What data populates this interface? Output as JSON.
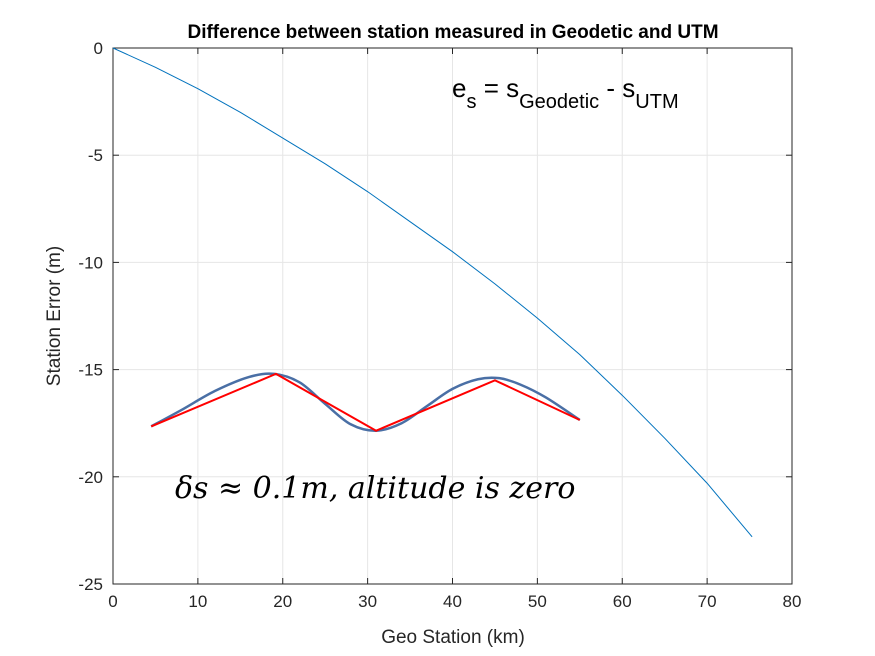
{
  "chart_data": {
    "type": "line",
    "title": "Difference between station measured in Geodetic and UTM",
    "xlabel": "Geo Station (km)",
    "ylabel": "Station Error (m)",
    "xlim": [
      0,
      80
    ],
    "ylim": [
      -25,
      0
    ],
    "xticks": [
      0,
      10,
      20,
      30,
      40,
      50,
      60,
      70,
      80
    ],
    "yticks": [
      0,
      -5,
      -10,
      -15,
      -20,
      -25
    ],
    "xtick_labels": [
      "0",
      "10",
      "20",
      "30",
      "40",
      "50",
      "60",
      "70",
      "80"
    ],
    "ytick_labels": [
      "0",
      "-5",
      "-10",
      "-15",
      "-20",
      "-25"
    ],
    "grid": true,
    "series": [
      {
        "color": "#0072BD",
        "x": [
          0,
          5,
          10,
          15,
          20,
          25,
          30,
          35,
          40,
          45,
          50,
          55,
          60,
          65,
          70,
          75.3
        ],
        "y": [
          0,
          -0.9,
          -1.9,
          -3.0,
          -4.2,
          -5.4,
          -6.7,
          -8.1,
          -9.5,
          -11.0,
          -12.6,
          -14.3,
          -16.2,
          -18.2,
          -20.3,
          -22.8
        ]
      }
    ],
    "inset": {
      "smooth_color": "#4a6fa5",
      "polyline_color": "#ff0000",
      "smooth_x": [
        4.5,
        8,
        12,
        16,
        19,
        22,
        25,
        28,
        31,
        34,
        37,
        40,
        43,
        45.5,
        48,
        51,
        55
      ],
      "smooth_y": [
        -17.65,
        -16.9,
        -16.0,
        -15.35,
        -15.2,
        -15.6,
        -16.6,
        -17.55,
        -17.85,
        -17.5,
        -16.7,
        -15.9,
        -15.45,
        -15.4,
        -15.7,
        -16.3,
        -17.35
      ],
      "polyline_x": [
        4.5,
        19.2,
        31.0,
        45.0,
        55.0
      ],
      "polyline_y": [
        -17.65,
        -15.2,
        -17.85,
        -15.5,
        -17.35
      ]
    },
    "annotations": {
      "formula_main": "e",
      "formula_sub1": "s",
      "formula_mid": " = s",
      "formula_sub2": "Geodetic",
      "formula_minus": " - s",
      "formula_sub3": "UTM",
      "math_note": "δs ≈ 0.1m, altitude is zero"
    }
  }
}
